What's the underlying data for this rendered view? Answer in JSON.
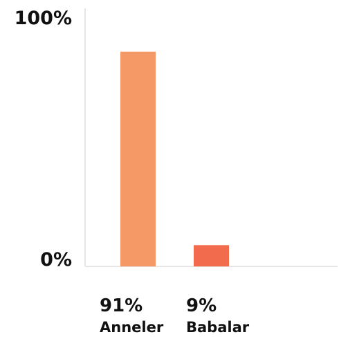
{
  "chart_data": {
    "type": "bar",
    "categories": [
      "Anneler",
      "Babalar"
    ],
    "values": [
      91,
      9
    ],
    "value_labels": [
      "91%",
      "9%"
    ],
    "colors": [
      "#f59a66",
      "#f26b4c"
    ],
    "ylim": [
      0,
      100
    ],
    "y_ticks": [
      {
        "value": 0,
        "label": "0%"
      },
      {
        "value": 100,
        "label": "100%"
      }
    ],
    "grid": false,
    "title": "",
    "xlabel": "",
    "ylabel": "",
    "axis_color": "#e6e6e6"
  }
}
